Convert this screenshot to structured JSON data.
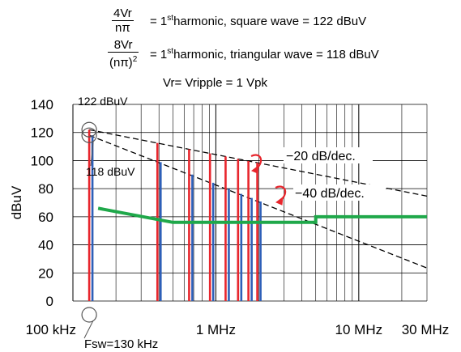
{
  "header": {
    "eq1": {
      "numerator": "4Vr",
      "denominator": "nπ",
      "rhs_pre": "= 1",
      "rhs_sup": "st",
      "rhs_post": "harmonic, square wave = 122 dBuV"
    },
    "eq2": {
      "numerator": "8Vr",
      "denominator": "(nπ)",
      "den_sup": "2",
      "rhs_pre": "= 1",
      "rhs_sup": "st",
      "rhs_post": "harmonic, triangular wave = 118 dBuV"
    },
    "vr_line": "Vr= Vripple = 1 Vpk"
  },
  "chart_data": {
    "type": "line",
    "x_scale": "log",
    "xlim_hz": [
      100000,
      30000000
    ],
    "ylim": [
      0,
      140
    ],
    "ylabel": "dBuV",
    "y_ticks": [
      0,
      20,
      40,
      60,
      80,
      100,
      120,
      140
    ],
    "x_tick_labels": [
      {
        "value_hz": 100000,
        "label": "100 kHz"
      },
      {
        "value_hz": 1000000,
        "label": "1 MHz"
      },
      {
        "value_hz": 10000000,
        "label": "10 MHz"
      },
      {
        "value_hz": 30000000,
        "label": "30 MHz"
      }
    ],
    "grid": true,
    "harmonics_hz": [
      130000,
      390000,
      650000,
      910000,
      1170000,
      1430000,
      1690000,
      1950000
    ],
    "square_wave_harmonics_dbuv": [
      122,
      112.5,
      108,
      105.1,
      102.9,
      101.2,
      99.7,
      98.5
    ],
    "triangular_wave_harmonics_dbuv": [
      118,
      98.9,
      90.0,
      84.2,
      79.8,
      76.3,
      73.4,
      70.9
    ],
    "square_wave_color": "#e8262d",
    "triangular_wave_color": "#2e5fb8",
    "envelope_lines": [
      {
        "slope_label": "−20 dB/dec.",
        "from": [
          130000,
          122
        ],
        "to": [
          30000000,
          74.7
        ]
      },
      {
        "slope_label": "−40 dB/dec.",
        "from": [
          130000,
          118
        ],
        "to": [
          30000000,
          23.5
        ]
      }
    ],
    "limit_line": {
      "color": "#1fa84a",
      "points": [
        [
          150000,
          66
        ],
        [
          500000,
          56
        ],
        [
          5000000,
          56
        ],
        [
          5000000,
          60
        ],
        [
          30000000,
          60
        ]
      ]
    },
    "annotations": {
      "square_first": "122 dBuV",
      "triangular_first": "118 dBuV",
      "fsw": "Fsw=130 kHz"
    },
    "annotation_color": "#e8262d"
  }
}
